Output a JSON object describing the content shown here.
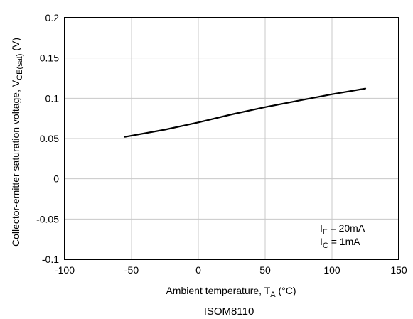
{
  "chart_data": {
    "type": "line",
    "xlabel_main": "Ambient temperature, T",
    "xlabel_sub": "A",
    "xlabel_unit": " (°C)",
    "ylabel_main": "Collector-emitter saturation voltage, V",
    "ylabel_sub": "CE(sat)",
    "ylabel_unit": " (V)",
    "xlim": [
      -100,
      150
    ],
    "ylim": [
      -0.1,
      0.2
    ],
    "x_ticks": [
      "-100",
      "-50",
      "0",
      "50",
      "100",
      "150"
    ],
    "y_ticks": [
      "0.2",
      "0.15",
      "0.1",
      "0.05",
      "0",
      "-0.05",
      "-0.1"
    ],
    "grid": true,
    "series": [
      {
        "x": [
          -55,
          -25,
          0,
          25,
          50,
          75,
          100,
          125
        ],
        "y": [
          0.052,
          0.061,
          0.07,
          0.08,
          0.089,
          0.097,
          0.105,
          0.112
        ]
      }
    ],
    "annotations": [
      {
        "main": "I",
        "sub": "F",
        "rest": " = 20mA"
      },
      {
        "main": "I",
        "sub": "C",
        "rest": " = 1mA"
      }
    ],
    "caption": "ISOM8110"
  },
  "colors": {
    "line": "#000000",
    "grid": "#c8c8c8",
    "frame": "#000000"
  }
}
